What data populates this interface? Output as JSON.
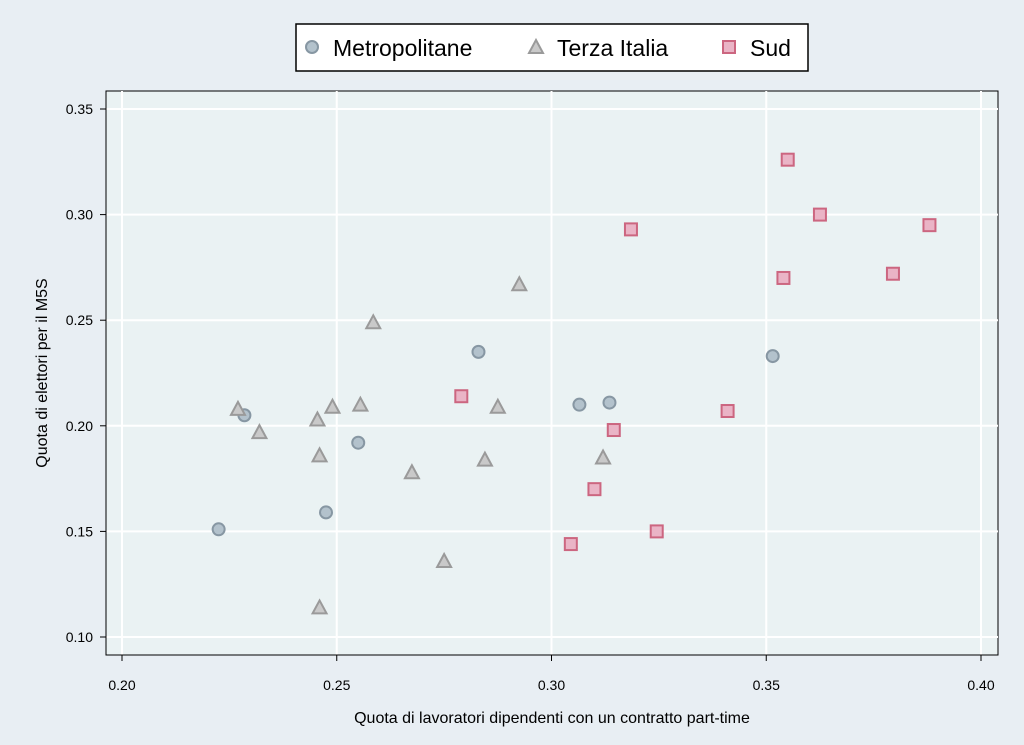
{
  "chart_data": {
    "type": "scatter",
    "xlabel": "Quota di lavoratori dipendenti con un contratto part-time",
    "ylabel": "Quota di elettori per il M5S",
    "xlim": [
      0.2,
      0.4
    ],
    "ylim": [
      0.1,
      0.35
    ],
    "xticks": [
      "0.20",
      "0.25",
      "0.30",
      "0.35",
      "0.40"
    ],
    "yticks": [
      "0.10",
      "0.15",
      "0.20",
      "0.25",
      "0.30",
      "0.35"
    ],
    "grid": true,
    "legend_position": "top",
    "series": [
      {
        "name": "Metropolitane",
        "marker": "circle",
        "fill": "#b3c2cc",
        "stroke": "#8797a3",
        "points": [
          [
            0.2225,
            0.151
          ],
          [
            0.2285,
            0.205
          ],
          [
            0.2475,
            0.159
          ],
          [
            0.255,
            0.192
          ],
          [
            0.283,
            0.235
          ],
          [
            0.3065,
            0.21
          ],
          [
            0.3135,
            0.211
          ],
          [
            0.3515,
            0.233
          ]
        ]
      },
      {
        "name": "Terza Italia",
        "marker": "triangle",
        "fill": "#c9c9c9",
        "stroke": "#9a9a9a",
        "points": [
          [
            0.227,
            0.208
          ],
          [
            0.232,
            0.197
          ],
          [
            0.2455,
            0.203
          ],
          [
            0.246,
            0.186
          ],
          [
            0.246,
            0.114
          ],
          [
            0.249,
            0.209
          ],
          [
            0.2555,
            0.21
          ],
          [
            0.2585,
            0.249
          ],
          [
            0.2675,
            0.178
          ],
          [
            0.275,
            0.136
          ],
          [
            0.2845,
            0.184
          ],
          [
            0.2875,
            0.209
          ],
          [
            0.2925,
            0.267
          ],
          [
            0.312,
            0.185
          ]
        ]
      },
      {
        "name": "Sud",
        "marker": "square",
        "fill": "#eab4c6",
        "stroke": "#cc6680",
        "points": [
          [
            0.279,
            0.214
          ],
          [
            0.3045,
            0.144
          ],
          [
            0.31,
            0.17
          ],
          [
            0.3145,
            0.198
          ],
          [
            0.3185,
            0.293
          ],
          [
            0.3245,
            0.15
          ],
          [
            0.341,
            0.207
          ],
          [
            0.354,
            0.27
          ],
          [
            0.355,
            0.326
          ],
          [
            0.3625,
            0.3
          ],
          [
            0.3795,
            0.272
          ],
          [
            0.388,
            0.295
          ]
        ]
      }
    ]
  }
}
